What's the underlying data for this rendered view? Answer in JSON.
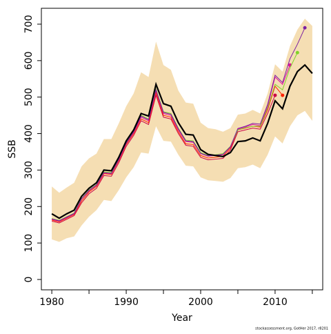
{
  "chart_data": {
    "type": "line",
    "xlabel": "Year",
    "ylabel": "SSB",
    "footer": "stockassessment.org, GotHer 2017, r8201",
    "x": [
      1980,
      1981,
      1982,
      1983,
      1984,
      1985,
      1986,
      1987,
      1988,
      1989,
      1990,
      1991,
      1992,
      1993,
      1994,
      1995,
      1996,
      1997,
      1998,
      1999,
      2000,
      2001,
      2002,
      2003,
      2004,
      2005,
      2006,
      2007,
      2008,
      2009,
      2010,
      2011,
      2012,
      2013,
      2014,
      2015
    ],
    "band": {
      "color": "#f5deb3",
      "upper": [
        255,
        238,
        252,
        265,
        310,
        332,
        345,
        385,
        385,
        428,
        475,
        510,
        568,
        555,
        652,
        588,
        575,
        518,
        485,
        482,
        430,
        415,
        412,
        405,
        415,
        452,
        455,
        465,
        455,
        510,
        590,
        570,
        640,
        685,
        715,
        695
      ],
      "lower": [
        110,
        103,
        113,
        118,
        148,
        172,
        190,
        218,
        215,
        245,
        280,
        308,
        348,
        345,
        420,
        380,
        378,
        342,
        312,
        310,
        280,
        272,
        270,
        268,
        278,
        305,
        308,
        315,
        305,
        342,
        392,
        373,
        420,
        450,
        462,
        435
      ]
    },
    "series": [
      {
        "color": "#cc0044",
        "values": [
          160,
          155,
          165,
          175,
          210,
          235,
          250,
          285,
          283,
          320,
          365,
          395,
          435,
          425,
          505,
          445,
          440,
          400,
          368,
          365,
          335,
          328,
          330,
          332,
          355,
          405,
          410,
          415,
          412,
          455,
          505,
          null,
          null,
          null,
          null,
          null
        ]
      },
      {
        "color": "#ff2200",
        "values": [
          163,
          158,
          168,
          178,
          215,
          240,
          255,
          290,
          288,
          325,
          370,
          400,
          440,
          430,
          512,
          450,
          445,
          405,
          372,
          370,
          340,
          333,
          335,
          338,
          360,
          410,
          415,
          420,
          418,
          465,
          530,
          505,
          null,
          null,
          null,
          null
        ]
      },
      {
        "color": "#e0109b",
        "values": [
          165,
          160,
          170,
          180,
          220,
          243,
          258,
          292,
          290,
          328,
          373,
          403,
          445,
          435,
          518,
          455,
          450,
          410,
          378,
          376,
          345,
          338,
          340,
          342,
          363,
          412,
          418,
          425,
          422,
          475,
          555,
          535,
          588,
          null,
          null,
          null
        ]
      },
      {
        "color": "#7fd32a",
        "values": [
          167,
          162,
          172,
          182,
          222,
          245,
          260,
          295,
          293,
          330,
          376,
          406,
          450,
          440,
          522,
          460,
          455,
          415,
          382,
          380,
          348,
          340,
          342,
          345,
          365,
          410,
          416,
          420,
          420,
          470,
          535,
          520,
          580,
          622,
          null,
          null
        ]
      },
      {
        "color": "#7b1fa2",
        "values": [
          166,
          161,
          171,
          181,
          221,
          244,
          259,
          293,
          291,
          329,
          374,
          405,
          448,
          438,
          520,
          458,
          453,
          413,
          380,
          378,
          346,
          339,
          341,
          343,
          364,
          414,
          420,
          428,
          426,
          480,
          560,
          540,
          605,
          645,
          690,
          null
        ]
      },
      {
        "color": "#000000",
        "values": [
          180,
          168,
          180,
          190,
          228,
          250,
          265,
          300,
          298,
          335,
          380,
          410,
          455,
          448,
          535,
          482,
          475,
          430,
          398,
          396,
          356,
          343,
          340,
          337,
          348,
          378,
          380,
          388,
          380,
          428,
          490,
          468,
          530,
          570,
          588,
          565
        ]
      }
    ],
    "xlim": [
      1978.6,
      2016.4
    ],
    "xticks": [
      1980,
      {
        "value": 1985,
        "label": null
      },
      1990,
      {
        "value": 1995,
        "label": null
      },
      2000,
      {
        "value": 2005,
        "label": null
      },
      2010,
      {
        "value": 2015,
        "label": null
      }
    ],
    "ylim": [
      -28.4,
      743.5
    ],
    "yticks": [
      0,
      100,
      200,
      300,
      400,
      500,
      600,
      700
    ]
  }
}
